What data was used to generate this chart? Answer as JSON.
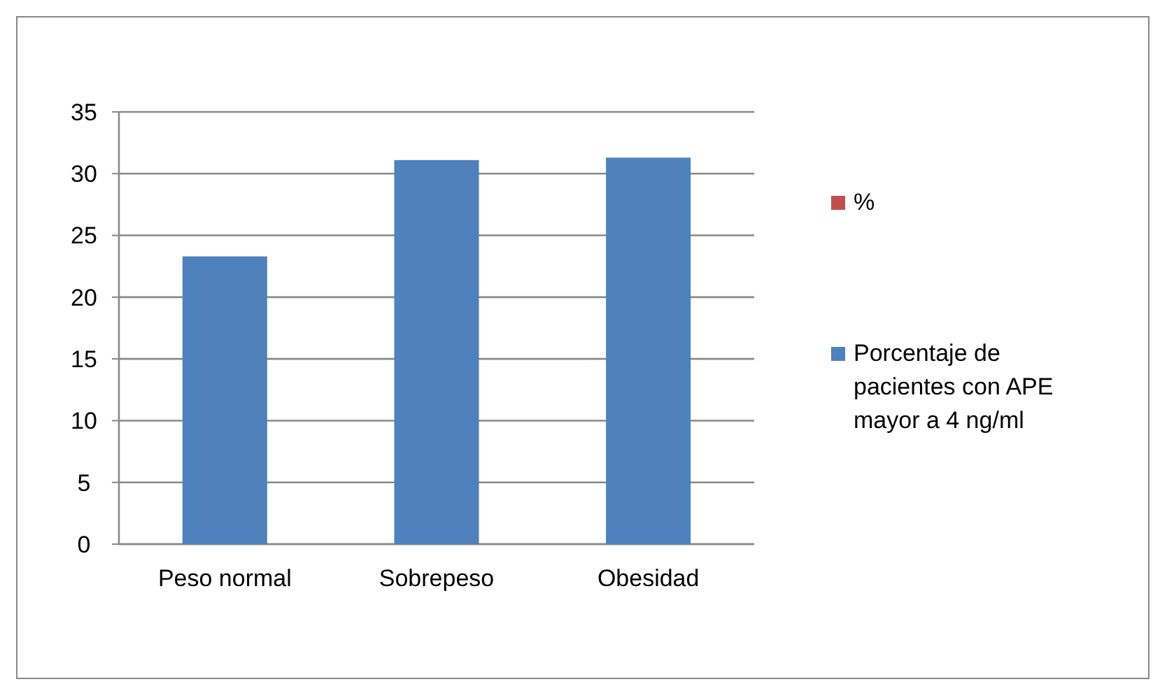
{
  "chart_data": {
    "type": "bar",
    "stacked": true,
    "categories": [
      "Peso normal",
      "Sobrepeso",
      "Obesidad"
    ],
    "series": [
      {
        "name": "Porcentaje de pacientes con APE mayor a 4 ng/ml",
        "color": "#4f81bd",
        "values": [
          23.3,
          31.1,
          31.3
        ]
      },
      {
        "name": "%",
        "color": "#c0504d",
        "values": [
          0,
          0,
          0
        ]
      }
    ],
    "ylim": [
      0,
      35
    ],
    "yticks": [
      0,
      5,
      10,
      15,
      20,
      25,
      30,
      35
    ],
    "grid": "y",
    "legend": "right"
  }
}
